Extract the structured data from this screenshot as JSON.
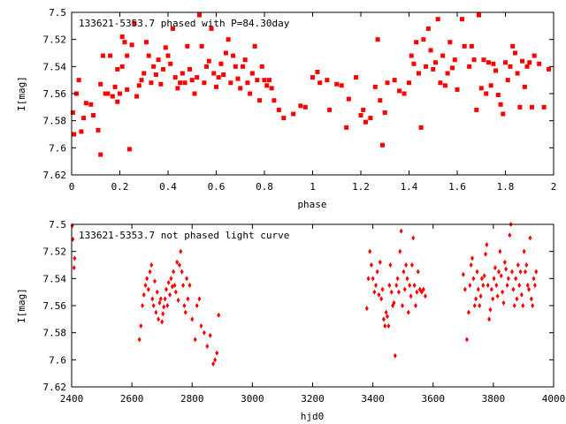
{
  "chart_data": [
    {
      "type": "scatter",
      "title": "133621-5353.7 phased with P=84.30day",
      "xlabel": "phase",
      "ylabel": "I[mag]",
      "xlim": [
        0,
        2
      ],
      "ylim": [
        7.62,
        7.5
      ],
      "y_inverted": true,
      "x_ticks": [
        "0",
        "0.2",
        "0.4",
        "0.6",
        "0.8",
        "1",
        "1.2",
        "1.4",
        "1.6",
        "1.8",
        "2"
      ],
      "y_ticks": [
        "7.5",
        "7.52",
        "7.54",
        "7.56",
        "7.58",
        "7.6",
        "7.62"
      ],
      "marker": "square",
      "color": "#ff0000",
      "points": [
        [
          0.005,
          7.574
        ],
        [
          0.01,
          7.59
        ],
        [
          0.02,
          7.56
        ],
        [
          0.03,
          7.55
        ],
        [
          0.04,
          7.588
        ],
        [
          0.05,
          7.578
        ],
        [
          0.06,
          7.567
        ],
        [
          0.08,
          7.568
        ],
        [
          0.09,
          7.576
        ],
        [
          0.11,
          7.587
        ],
        [
          0.12,
          7.605
        ],
        [
          0.12,
          7.553
        ],
        [
          0.13,
          7.532
        ],
        [
          0.14,
          7.56
        ],
        [
          0.15,
          7.56
        ],
        [
          0.16,
          7.532
        ],
        [
          0.17,
          7.562
        ],
        [
          0.18,
          7.555
        ],
        [
          0.19,
          7.566
        ],
        [
          0.19,
          7.542
        ],
        [
          0.2,
          7.56
        ],
        [
          0.21,
          7.518
        ],
        [
          0.21,
          7.54
        ],
        [
          0.22,
          7.522
        ],
        [
          0.23,
          7.532
        ],
        [
          0.23,
          7.557
        ],
        [
          0.24,
          7.601
        ],
        [
          0.25,
          7.524
        ],
        [
          0.26,
          7.508
        ],
        [
          0.27,
          7.562
        ],
        [
          0.28,
          7.554
        ],
        [
          0.29,
          7.55
        ],
        [
          0.3,
          7.545
        ],
        [
          0.31,
          7.522
        ],
        [
          0.32,
          7.532
        ],
        [
          0.33,
          7.552
        ],
        [
          0.34,
          7.54
        ],
        [
          0.35,
          7.546
        ],
        [
          0.36,
          7.535
        ],
        [
          0.37,
          7.553
        ],
        [
          0.38,
          7.542
        ],
        [
          0.39,
          7.526
        ],
        [
          0.4,
          7.532
        ],
        [
          0.41,
          7.538
        ],
        [
          0.42,
          7.512
        ],
        [
          0.43,
          7.548
        ],
        [
          0.44,
          7.556
        ],
        [
          0.45,
          7.552
        ],
        [
          0.46,
          7.545
        ],
        [
          0.47,
          7.552
        ],
        [
          0.48,
          7.525
        ],
        [
          0.49,
          7.542
        ],
        [
          0.5,
          7.55
        ],
        [
          0.51,
          7.56
        ],
        [
          0.52,
          7.548
        ],
        [
          0.53,
          7.502
        ],
        [
          0.54,
          7.525
        ],
        [
          0.55,
          7.552
        ],
        [
          0.56,
          7.54
        ],
        [
          0.57,
          7.536
        ],
        [
          0.58,
          7.512
        ],
        [
          0.59,
          7.545
        ],
        [
          0.6,
          7.555
        ],
        [
          0.61,
          7.548
        ],
        [
          0.62,
          7.538
        ],
        [
          0.63,
          7.546
        ],
        [
          0.64,
          7.53
        ],
        [
          0.65,
          7.52
        ],
        [
          0.66,
          7.552
        ],
        [
          0.67,
          7.532
        ],
        [
          0.68,
          7.54
        ],
        [
          0.69,
          7.549
        ],
        [
          0.7,
          7.556
        ],
        [
          0.71,
          7.54
        ],
        [
          0.72,
          7.535
        ],
        [
          0.73,
          7.552
        ],
        [
          0.74,
          7.56
        ],
        [
          0.75,
          7.545
        ],
        [
          0.76,
          7.525
        ],
        [
          0.77,
          7.55
        ],
        [
          0.78,
          7.565
        ],
        [
          0.79,
          7.54
        ],
        [
          0.8,
          7.55
        ],
        [
          0.81,
          7.554
        ],
        [
          0.82,
          7.55
        ],
        [
          0.83,
          7.556
        ],
        [
          0.84,
          7.565
        ],
        [
          0.86,
          7.572
        ],
        [
          0.88,
          7.578
        ],
        [
          0.92,
          7.575
        ],
        [
          0.95,
          7.569
        ],
        [
          0.97,
          7.57
        ],
        [
          1.0,
          7.548
        ],
        [
          1.02,
          7.544
        ],
        [
          1.03,
          7.552
        ],
        [
          1.06,
          7.55
        ],
        [
          1.07,
          7.572
        ],
        [
          1.1,
          7.553
        ],
        [
          1.12,
          7.554
        ],
        [
          1.14,
          7.585
        ],
        [
          1.15,
          7.564
        ],
        [
          1.18,
          7.548
        ],
        [
          1.2,
          7.576
        ],
        [
          1.21,
          7.572
        ],
        [
          1.22,
          7.581
        ],
        [
          1.24,
          7.578
        ],
        [
          1.26,
          7.555
        ],
        [
          1.27,
          7.52
        ],
        [
          1.28,
          7.565
        ],
        [
          1.29,
          7.598
        ],
        [
          1.3,
          7.574
        ],
        [
          1.31,
          7.552
        ],
        [
          1.34,
          7.55
        ],
        [
          1.36,
          7.558
        ],
        [
          1.38,
          7.56
        ],
        [
          1.4,
          7.552
        ],
        [
          1.41,
          7.532
        ],
        [
          1.42,
          7.538
        ],
        [
          1.43,
          7.522
        ],
        [
          1.44,
          7.545
        ],
        [
          1.45,
          7.585
        ],
        [
          1.46,
          7.52
        ],
        [
          1.47,
          7.54
        ],
        [
          1.48,
          7.512
        ],
        [
          1.49,
          7.528
        ],
        [
          1.5,
          7.542
        ],
        [
          1.51,
          7.537
        ],
        [
          1.52,
          7.505
        ],
        [
          1.53,
          7.552
        ],
        [
          1.54,
          7.532
        ],
        [
          1.55,
          7.554
        ],
        [
          1.56,
          7.545
        ],
        [
          1.57,
          7.522
        ],
        [
          1.58,
          7.541
        ],
        [
          1.59,
          7.535
        ],
        [
          1.6,
          7.557
        ],
        [
          1.62,
          7.505
        ],
        [
          1.63,
          7.525
        ],
        [
          1.65,
          7.54
        ],
        [
          1.66,
          7.525
        ],
        [
          1.67,
          7.535
        ],
        [
          1.68,
          7.572
        ],
        [
          1.69,
          7.502
        ],
        [
          1.7,
          7.556
        ],
        [
          1.71,
          7.535
        ],
        [
          1.72,
          7.56
        ],
        [
          1.73,
          7.537
        ],
        [
          1.74,
          7.554
        ],
        [
          1.75,
          7.538
        ],
        [
          1.76,
          7.543
        ],
        [
          1.77,
          7.561
        ],
        [
          1.78,
          7.568
        ],
        [
          1.79,
          7.575
        ],
        [
          1.8,
          7.537
        ],
        [
          1.81,
          7.55
        ],
        [
          1.82,
          7.54
        ],
        [
          1.83,
          7.525
        ],
        [
          1.84,
          7.53
        ],
        [
          1.85,
          7.545
        ],
        [
          1.86,
          7.57
        ],
        [
          1.87,
          7.536
        ],
        [
          1.88,
          7.555
        ],
        [
          1.89,
          7.54
        ],
        [
          1.9,
          7.537
        ],
        [
          1.91,
          7.57
        ],
        [
          1.92,
          7.532
        ],
        [
          1.94,
          7.538
        ],
        [
          1.96,
          7.57
        ],
        [
          1.98,
          7.542
        ]
      ]
    },
    {
      "type": "scatter",
      "title": "133621-5353.7 not phased light curve",
      "xlabel": "hjd0",
      "ylabel": "I[mag]",
      "xlim": [
        2400,
        4000
      ],
      "ylim": [
        7.62,
        7.5
      ],
      "y_inverted": true,
      "x_ticks": [
        "2400",
        "2600",
        "2800",
        "3000",
        "3200",
        "3400",
        "3600",
        "3800",
        "4000"
      ],
      "y_ticks": [
        "7.5",
        "7.52",
        "7.54",
        "7.56",
        "7.58",
        "7.6",
        "7.62"
      ],
      "marker": "diamond",
      "color": "#ff0000",
      "points": [
        [
          2402,
          7.501
        ],
        [
          2404,
          7.511
        ],
        [
          2408,
          7.532
        ],
        [
          2410,
          7.525
        ],
        [
          2625,
          7.585
        ],
        [
          2630,
          7.575
        ],
        [
          2635,
          7.56
        ],
        [
          2640,
          7.552
        ],
        [
          2645,
          7.545
        ],
        [
          2650,
          7.54
        ],
        [
          2655,
          7.548
        ],
        [
          2660,
          7.535
        ],
        [
          2665,
          7.53
        ],
        [
          2668,
          7.555
        ],
        [
          2672,
          7.56
        ],
        [
          2676,
          7.542
        ],
        [
          2680,
          7.565
        ],
        [
          2684,
          7.55
        ],
        [
          2688,
          7.57
        ],
        [
          2692,
          7.558
        ],
        [
          2696,
          7.555
        ],
        [
          2700,
          7.572
        ],
        [
          2703,
          7.566
        ],
        [
          2706,
          7.561
        ],
        [
          2710,
          7.555
        ],
        [
          2714,
          7.548
        ],
        [
          2718,
          7.56
        ],
        [
          2722,
          7.543
        ],
        [
          2726,
          7.552
        ],
        [
          2730,
          7.54
        ],
        [
          2734,
          7.546
        ],
        [
          2738,
          7.535
        ],
        [
          2742,
          7.545
        ],
        [
          2746,
          7.55
        ],
        [
          2750,
          7.528
        ],
        [
          2754,
          7.556
        ],
        [
          2758,
          7.53
        ],
        [
          2762,
          7.52
        ],
        [
          2766,
          7.535
        ],
        [
          2770,
          7.545
        ],
        [
          2774,
          7.56
        ],
        [
          2778,
          7.565
        ],
        [
          2782,
          7.54
        ],
        [
          2786,
          7.555
        ],
        [
          2792,
          7.545
        ],
        [
          2800,
          7.57
        ],
        [
          2810,
          7.585
        ],
        [
          2816,
          7.56
        ],
        [
          2824,
          7.555
        ],
        [
          2830,
          7.575
        ],
        [
          2840,
          7.58
        ],
        [
          2850,
          7.59
        ],
        [
          2860,
          7.582
        ],
        [
          2870,
          7.603
        ],
        [
          2876,
          7.6
        ],
        [
          2882,
          7.595
        ],
        [
          2888,
          7.567
        ],
        [
          3380,
          7.562
        ],
        [
          3385,
          7.54
        ],
        [
          3390,
          7.52
        ],
        [
          3395,
          7.53
        ],
        [
          3400,
          7.54
        ],
        [
          3405,
          7.55
        ],
        [
          3410,
          7.545
        ],
        [
          3415,
          7.535
        ],
        [
          3420,
          7.552
        ],
        [
          3424,
          7.528
        ],
        [
          3428,
          7.555
        ],
        [
          3432,
          7.548
        ],
        [
          3436,
          7.57
        ],
        [
          3440,
          7.575
        ],
        [
          3444,
          7.565
        ],
        [
          3448,
          7.568
        ],
        [
          3452,
          7.575
        ],
        [
          3455,
          7.545
        ],
        [
          3458,
          7.53
        ],
        [
          3462,
          7.55
        ],
        [
          3466,
          7.56
        ],
        [
          3470,
          7.558
        ],
        [
          3474,
          7.597
        ],
        [
          3478,
          7.545
        ],
        [
          3482,
          7.54
        ],
        [
          3486,
          7.55
        ],
        [
          3490,
          7.52
        ],
        [
          3494,
          7.505
        ],
        [
          3498,
          7.56
        ],
        [
          3502,
          7.535
        ],
        [
          3506,
          7.548
        ],
        [
          3510,
          7.53
        ],
        [
          3514,
          7.54
        ],
        [
          3518,
          7.565
        ],
        [
          3522,
          7.545
        ],
        [
          3526,
          7.553
        ],
        [
          3530,
          7.53
        ],
        [
          3534,
          7.51
        ],
        [
          3538,
          7.545
        ],
        [
          3542,
          7.56
        ],
        [
          3546,
          7.55
        ],
        [
          3550,
          7.535
        ],
        [
          3556,
          7.548
        ],
        [
          3562,
          7.55
        ],
        [
          3568,
          7.548
        ],
        [
          3574,
          7.553
        ],
        [
          3700,
          7.537
        ],
        [
          3706,
          7.548
        ],
        [
          3712,
          7.585
        ],
        [
          3718,
          7.565
        ],
        [
          3722,
          7.545
        ],
        [
          3726,
          7.53
        ],
        [
          3730,
          7.525
        ],
        [
          3734,
          7.54
        ],
        [
          3738,
          7.56
        ],
        [
          3742,
          7.555
        ],
        [
          3746,
          7.535
        ],
        [
          3750,
          7.548
        ],
        [
          3754,
          7.56
        ],
        [
          3758,
          7.553
        ],
        [
          3762,
          7.54
        ],
        [
          3766,
          7.545
        ],
        [
          3770,
          7.538
        ],
        [
          3774,
          7.522
        ],
        [
          3778,
          7.515
        ],
        [
          3782,
          7.545
        ],
        [
          3786,
          7.57
        ],
        [
          3790,
          7.563
        ],
        [
          3794,
          7.548
        ],
        [
          3798,
          7.555
        ],
        [
          3802,
          7.54
        ],
        [
          3806,
          7.532
        ],
        [
          3810,
          7.545
        ],
        [
          3814,
          7.553
        ],
        [
          3818,
          7.535
        ],
        [
          3822,
          7.52
        ],
        [
          3826,
          7.538
        ],
        [
          3830,
          7.55
        ],
        [
          3834,
          7.558
        ],
        [
          3838,
          7.528
        ],
        [
          3842,
          7.533
        ],
        [
          3846,
          7.545
        ],
        [
          3850,
          7.54
        ],
        [
          3854,
          7.508
        ],
        [
          3858,
          7.5
        ],
        [
          3862,
          7.535
        ],
        [
          3866,
          7.548
        ],
        [
          3870,
          7.56
        ],
        [
          3874,
          7.54
        ],
        [
          3878,
          7.555
        ],
        [
          3882,
          7.53
        ],
        [
          3886,
          7.545
        ],
        [
          3890,
          7.535
        ],
        [
          3894,
          7.552
        ],
        [
          3898,
          7.56
        ],
        [
          3902,
          7.52
        ],
        [
          3906,
          7.535
        ],
        [
          3910,
          7.53
        ],
        [
          3914,
          7.545
        ],
        [
          3918,
          7.548
        ],
        [
          3922,
          7.51
        ],
        [
          3926,
          7.555
        ],
        [
          3930,
          7.56
        ],
        [
          3934,
          7.54
        ],
        [
          3938,
          7.545
        ],
        [
          3942,
          7.535
        ]
      ]
    }
  ]
}
